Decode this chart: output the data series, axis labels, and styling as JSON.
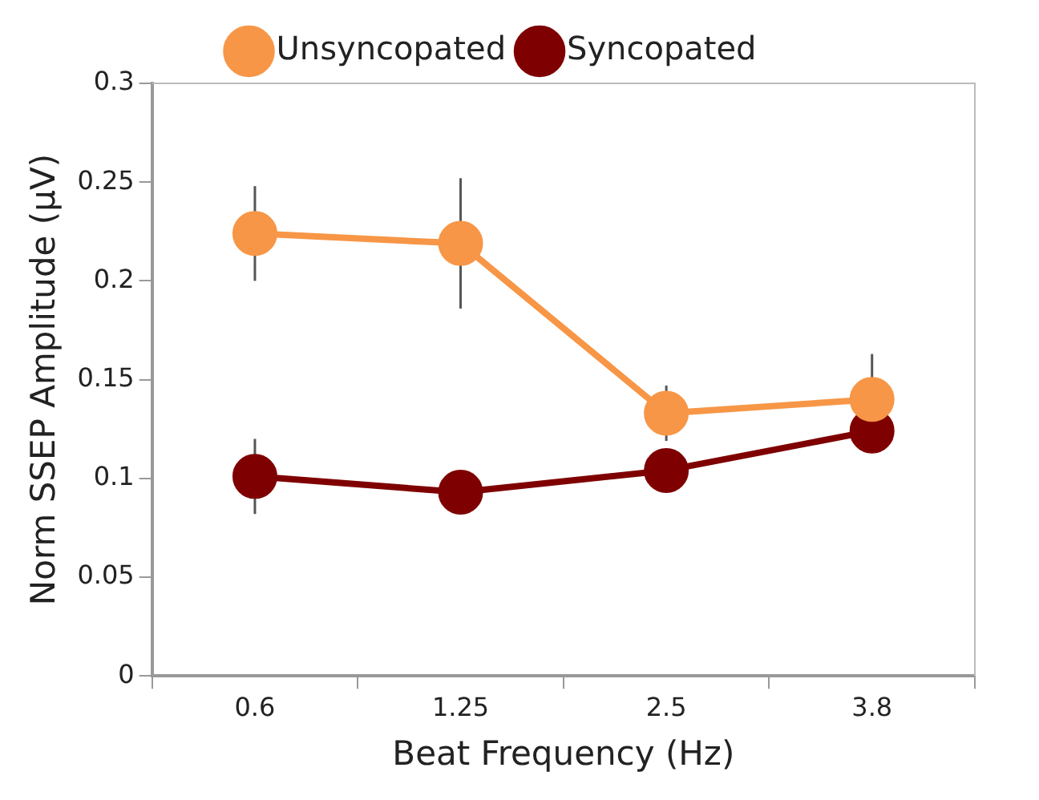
{
  "chart_data": {
    "type": "line",
    "xlabel": "Beat Frequency (Hz)",
    "ylabel": "Norm SSEP Amplitude (μV)",
    "categories": [
      "0.6",
      "1.25",
      "2.5",
      "3.8"
    ],
    "series": [
      {
        "name": "Unsyncopated",
        "color": "#f79646",
        "values": [
          0.224,
          0.219,
          0.133,
          0.14
        ],
        "errors": [
          0.024,
          0.033,
          0.014,
          0.023
        ]
      },
      {
        "name": "Syncopated",
        "color": "#7f0000",
        "values": [
          0.101,
          0.093,
          0.104,
          0.124
        ],
        "errors": [
          0.019,
          null,
          null,
          null
        ]
      }
    ],
    "ylim": [
      0,
      0.3
    ],
    "yticks": [
      0,
      0.05,
      0.1,
      0.15,
      0.2,
      0.25,
      0.3
    ],
    "grid": false,
    "legend": "top",
    "marker": "circle",
    "line_style": "solid"
  }
}
